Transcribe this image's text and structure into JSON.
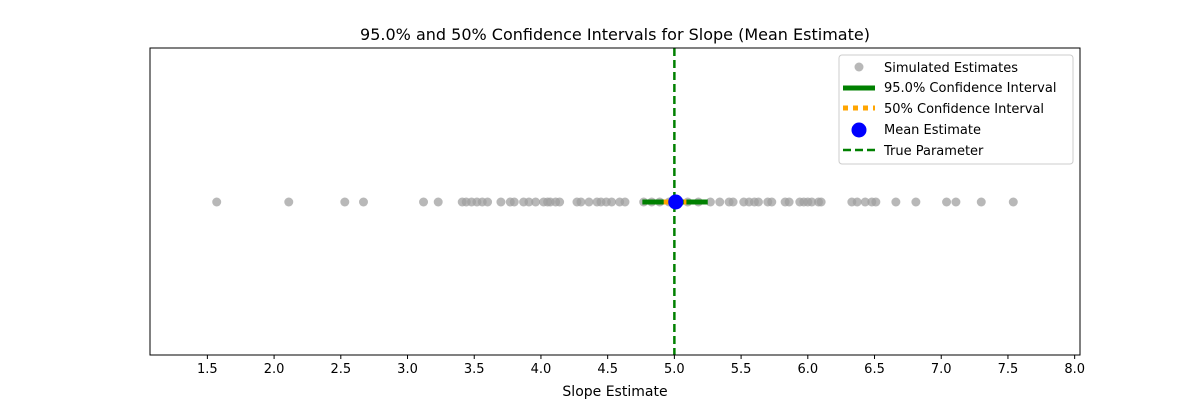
{
  "chart_data": {
    "type": "scatter",
    "title": "95.0% and 50% Confidence Intervals for Slope (Mean Estimate)",
    "xlabel": "Slope Estimate",
    "ylabel": "",
    "xlim": [
      1.07,
      8.04
    ],
    "xticks": [
      "1.5",
      "2.0",
      "2.5",
      "3.0",
      "3.5",
      "4.0",
      "4.5",
      "5.0",
      "5.5",
      "6.0",
      "6.5",
      "7.0",
      "7.5",
      "8.0"
    ],
    "xtick_values": [
      1.5,
      2.0,
      2.5,
      3.0,
      3.5,
      4.0,
      4.5,
      5.0,
      5.5,
      6.0,
      6.5,
      7.0,
      7.5,
      8.0
    ],
    "yticks": [],
    "grid": false,
    "legend_position": "top-right",
    "simulated_estimates": {
      "name": "Simulated Estimates",
      "color": "#a0a0a0",
      "values": [
        1.57,
        2.11,
        2.53,
        2.67,
        3.12,
        3.23,
        3.41,
        3.44,
        3.48,
        3.52,
        3.56,
        3.6,
        3.7,
        3.77,
        3.8,
        3.87,
        3.91,
        3.96,
        4.02,
        4.05,
        4.07,
        4.11,
        4.14,
        4.27,
        4.3,
        4.36,
        4.42,
        4.45,
        4.49,
        4.53,
        4.59,
        4.63,
        4.77,
        4.83,
        4.89,
        4.96,
        5.04,
        5.1,
        5.18,
        5.27,
        5.34,
        5.41,
        5.44,
        5.52,
        5.56,
        5.6,
        5.63,
        5.7,
        5.73,
        5.83,
        5.86,
        5.94,
        5.97,
        6.0,
        6.03,
        6.08,
        6.1,
        6.33,
        6.37,
        6.43,
        6.48,
        6.51,
        6.66,
        6.81,
        7.04,
        7.11,
        7.3,
        7.54
      ]
    },
    "ci_95": {
      "name": "95.0% Confidence Interval",
      "color": "#008000",
      "low": 4.76,
      "high": 5.25
    },
    "ci_50": {
      "name": "50% Confidence Interval",
      "color": "#ffa500",
      "low": 4.92,
      "high": 5.09
    },
    "mean_estimate": {
      "name": "Mean Estimate",
      "color": "#0000ff",
      "value": 5.01
    },
    "true_parameter": {
      "name": "True Parameter",
      "color": "#008000",
      "value": 5.0
    }
  }
}
